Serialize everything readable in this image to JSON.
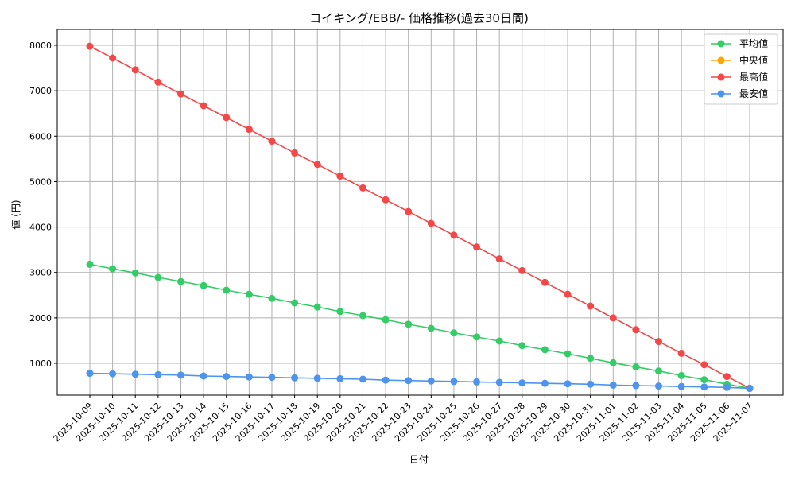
{
  "chart_data": {
    "type": "line",
    "title": "コイキング/EBB/- 価格推移(過去30日間)",
    "xlabel": "日付",
    "ylabel": "値 (円)",
    "ylim": [
      300,
      8350
    ],
    "yticks": [
      1000,
      2000,
      3000,
      4000,
      5000,
      6000,
      7000,
      8000
    ],
    "grid": true,
    "legend_position": "top-right",
    "x": [
      "2025-10-09",
      "2025-10-10",
      "2025-10-11",
      "2025-10-12",
      "2025-10-13",
      "2025-10-14",
      "2025-10-15",
      "2025-10-16",
      "2025-10-17",
      "2025-10-18",
      "2025-10-19",
      "2025-10-20",
      "2025-10-21",
      "2025-10-22",
      "2025-10-23",
      "2025-10-24",
      "2025-10-25",
      "2025-10-26",
      "2025-10-27",
      "2025-10-28",
      "2025-10-29",
      "2025-10-30",
      "2025-10-31",
      "2025-11-01",
      "2025-11-02",
      "2025-11-03",
      "2025-11-04",
      "2025-11-05",
      "2025-11-06",
      "2025-11-07"
    ],
    "series": [
      {
        "name": "平均値",
        "color": "#33cc66",
        "values": [
          3180,
          3080,
          2990,
          2890,
          2800,
          2710,
          2610,
          2520,
          2430,
          2330,
          2240,
          2140,
          2050,
          1960,
          1860,
          1770,
          1670,
          1580,
          1490,
          1390,
          1300,
          1210,
          1110,
          1010,
          920,
          830,
          730,
          640,
          540,
          450
        ]
      },
      {
        "name": "中央値",
        "color": "#ffa500",
        "values": [
          null,
          null,
          null,
          null,
          null,
          null,
          null,
          null,
          null,
          null,
          null,
          null,
          null,
          null,
          null,
          null,
          null,
          null,
          null,
          null,
          null,
          null,
          null,
          null,
          null,
          null,
          null,
          null,
          null,
          450
        ]
      },
      {
        "name": "最高値",
        "color": "#f44747",
        "values": [
          7980,
          7720,
          7460,
          7190,
          6930,
          6670,
          6410,
          6150,
          5890,
          5630,
          5380,
          5120,
          4860,
          4600,
          4340,
          4080,
          3820,
          3560,
          3300,
          3040,
          2780,
          2520,
          2260,
          2000,
          1740,
          1480,
          1220,
          970,
          710,
          450
        ]
      },
      {
        "name": "最安値",
        "color": "#4d94ee",
        "values": [
          780,
          770,
          760,
          750,
          740,
          720,
          710,
          700,
          690,
          680,
          670,
          660,
          650,
          630,
          620,
          610,
          600,
          590,
          580,
          570,
          560,
          550,
          540,
          520,
          510,
          500,
          490,
          480,
          470,
          450
        ]
      }
    ]
  }
}
